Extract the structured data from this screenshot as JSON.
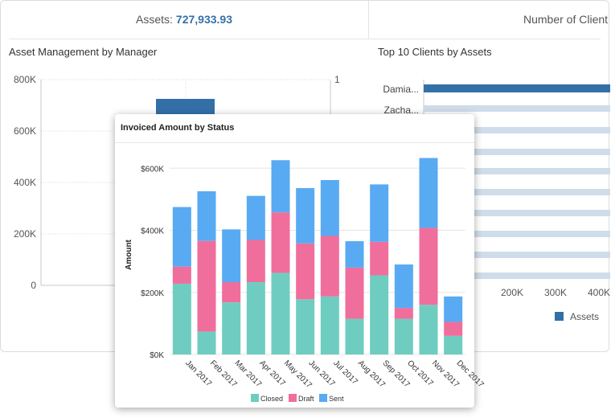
{
  "kpis": {
    "assets_label": "Assets:",
    "assets_value": "727,933.93",
    "clients_label": "Number of Client"
  },
  "panels": {
    "manager_title": "Asset Management by Manager",
    "top_clients_title": "Top 10 Clients by Assets"
  },
  "manager_chart": {
    "y_ticks": [
      "800K",
      "600K",
      "400K",
      "200K",
      "0"
    ],
    "right_tick": "1"
  },
  "clients_chart": {
    "clients": [
      "Damia...",
      "Zacha..."
    ],
    "x_ticks": [
      "200K",
      "300K",
      "400K"
    ],
    "legend": "Assets",
    "color": "#3470a8"
  },
  "invoice_card": {
    "title": "Invoiced Amount by Status"
  },
  "chart_data": {
    "type": "bar",
    "stacked": true,
    "title": "Invoiced Amount by Status",
    "xlabel": "",
    "ylabel": "Amount",
    "ylim": [
      0,
      650000
    ],
    "y_ticks": [
      "$0K",
      "$200K",
      "$400K",
      "$600K"
    ],
    "categories": [
      "Jan 2017",
      "Feb 2017",
      "Mar 2017",
      "Apr 2017",
      "May 2017",
      "Jun 2017",
      "Jul 2017",
      "Aug 2017",
      "Sep 2017",
      "Oct 2017",
      "Nov 2017",
      "Dec 2017"
    ],
    "series": [
      {
        "name": "Closed",
        "color": "#6ecdc0",
        "values": [
          228000,
          74000,
          168000,
          233000,
          263000,
          178000,
          187000,
          115000,
          255000,
          115000,
          160000,
          60000
        ]
      },
      {
        "name": "Draft",
        "color": "#f06e9c",
        "values": [
          55000,
          292000,
          65000,
          136000,
          195000,
          180000,
          195000,
          165000,
          108000,
          35000,
          248000,
          45000
        ]
      },
      {
        "name": "Sent",
        "color": "#58aaf2",
        "values": [
          192000,
          160000,
          170000,
          142000,
          168000,
          178000,
          180000,
          85000,
          185000,
          140000,
          225000,
          82000
        ]
      }
    ],
    "legend_position": "bottom",
    "grid": true
  }
}
